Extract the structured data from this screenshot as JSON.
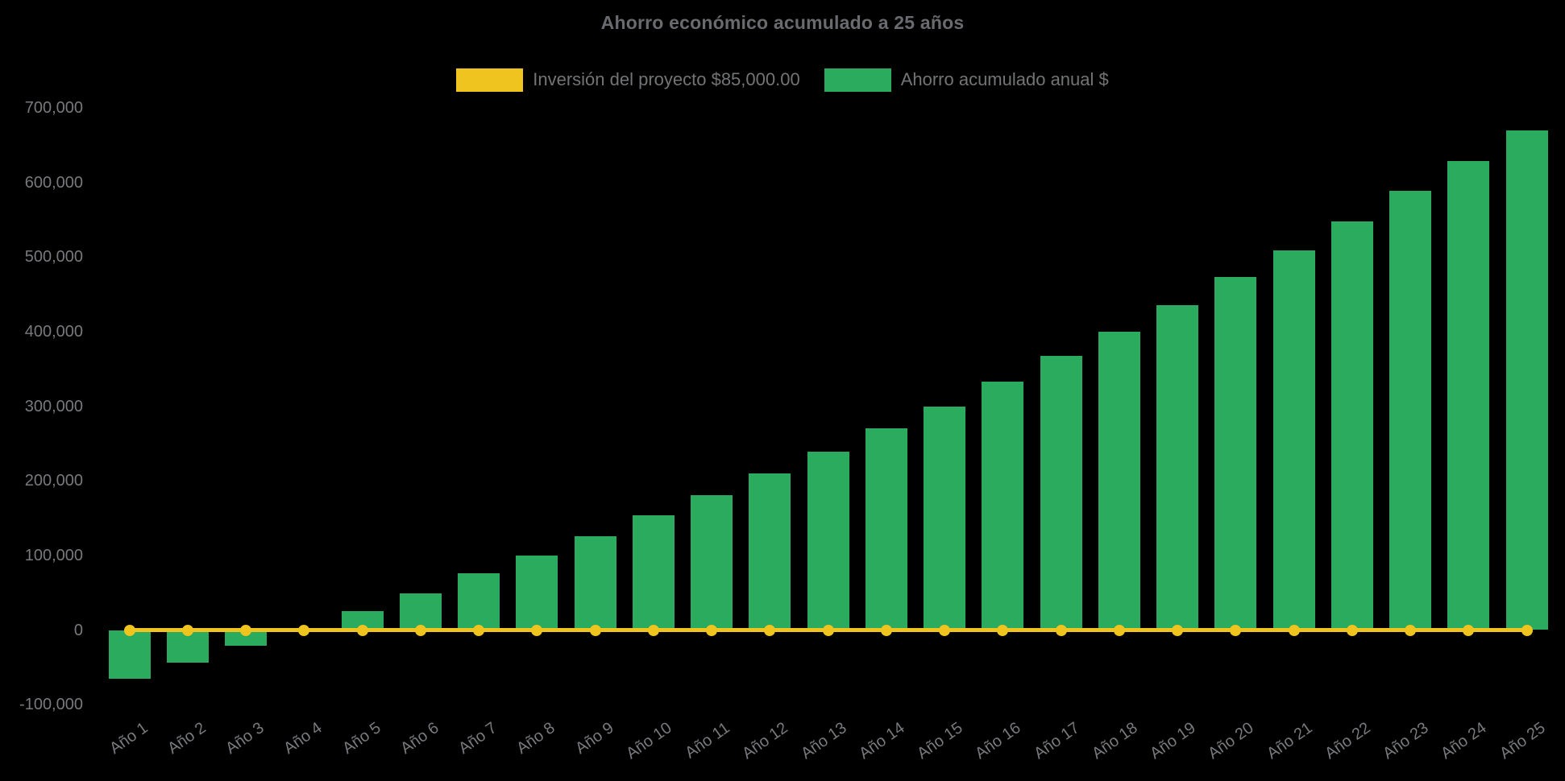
{
  "page": {
    "background": "#000000"
  },
  "colors": {
    "bar_green": "#2bab5e",
    "line_yellow": "#f0c41e",
    "title_text": "#696b6e",
    "axis_text": "#77797c",
    "legend_text": "#727476",
    "background": "#000000"
  },
  "chart": {
    "title": "Ahorro económico acumulado a 25 años",
    "legend": {
      "investment": "Inversión del proyecto $85,000.00",
      "savings": "Ahorro acumulado anual $"
    }
  },
  "chart_data": {
    "type": "bar",
    "title": "Ahorro económico acumulado a 25 años",
    "xlabel": "",
    "ylabel": "",
    "ylim": [
      -100000,
      700000
    ],
    "grid": false,
    "legend_position": "top",
    "categories": [
      "Año 1",
      "Año 2",
      "Año 3",
      "Año 4",
      "Año 5",
      "Año 6",
      "Año 7",
      "Año 8",
      "Año 9",
      "Año 10",
      "Año 11",
      "Año 12",
      "Año 13",
      "Año 14",
      "Año 15",
      "Año 16",
      "Año 17",
      "Año 18",
      "Año 19",
      "Año 20",
      "Año 21",
      "Año 22",
      "Año 23",
      "Año 24",
      "Año 25"
    ],
    "y_ticks": [
      700000,
      600000,
      500000,
      400000,
      300000,
      200000,
      100000,
      0,
      -100000
    ],
    "y_tick_labels": [
      "700,000",
      "600,000",
      "500,000",
      "400,000",
      "300,000",
      "200,000",
      "100,000",
      "0",
      "-100,000"
    ],
    "series": [
      {
        "name": "Inversión del proyecto $85,000.00",
        "type": "line",
        "color_key": "line_yellow",
        "marker": "circle",
        "values": [
          0,
          0,
          0,
          0,
          0,
          0,
          0,
          0,
          0,
          0,
          0,
          0,
          0,
          0,
          0,
          0,
          0,
          0,
          0,
          0,
          0,
          0,
          0,
          0,
          0
        ]
      },
      {
        "name": "Ahorro acumulado anual $",
        "type": "bar",
        "color_key": "bar_green",
        "values": [
          -65000,
          -44000,
          -21000,
          2000,
          25000,
          49000,
          76000,
          100000,
          126000,
          154000,
          181000,
          210000,
          239000,
          270000,
          300000,
          333000,
          367000,
          400000,
          436000,
          473000,
          509000,
          548000,
          589000,
          629000,
          670000
        ]
      }
    ]
  }
}
